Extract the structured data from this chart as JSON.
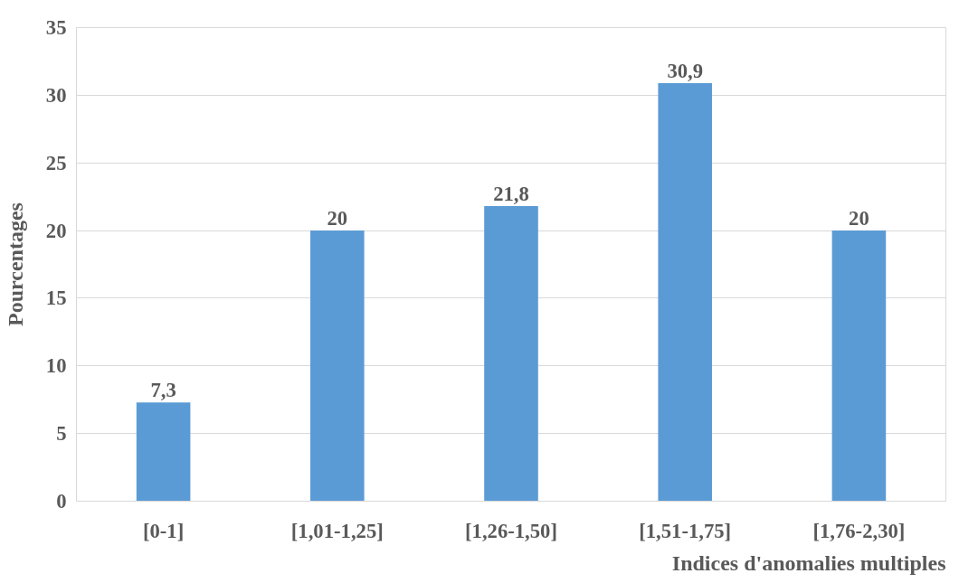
{
  "chart_data": {
    "type": "bar",
    "xlabel": "Indices d'anomalies multiples",
    "ylabel": "Pourcentages",
    "categories": [
      "[0-1]",
      "[1,01-1,25]",
      "[1,26-1,50]",
      "[1,51-1,75]",
      "[1,76-2,30]"
    ],
    "values": [
      7.3,
      20,
      21.8,
      30.9,
      20
    ],
    "value_labels": [
      "7,3",
      "20",
      "21,8",
      "30,9",
      "20"
    ],
    "color": "#5b9bd5",
    "ylim": [
      0,
      35
    ],
    "yticks": [
      0,
      5,
      10,
      15,
      20,
      25,
      30,
      35
    ],
    "grid": "y"
  }
}
